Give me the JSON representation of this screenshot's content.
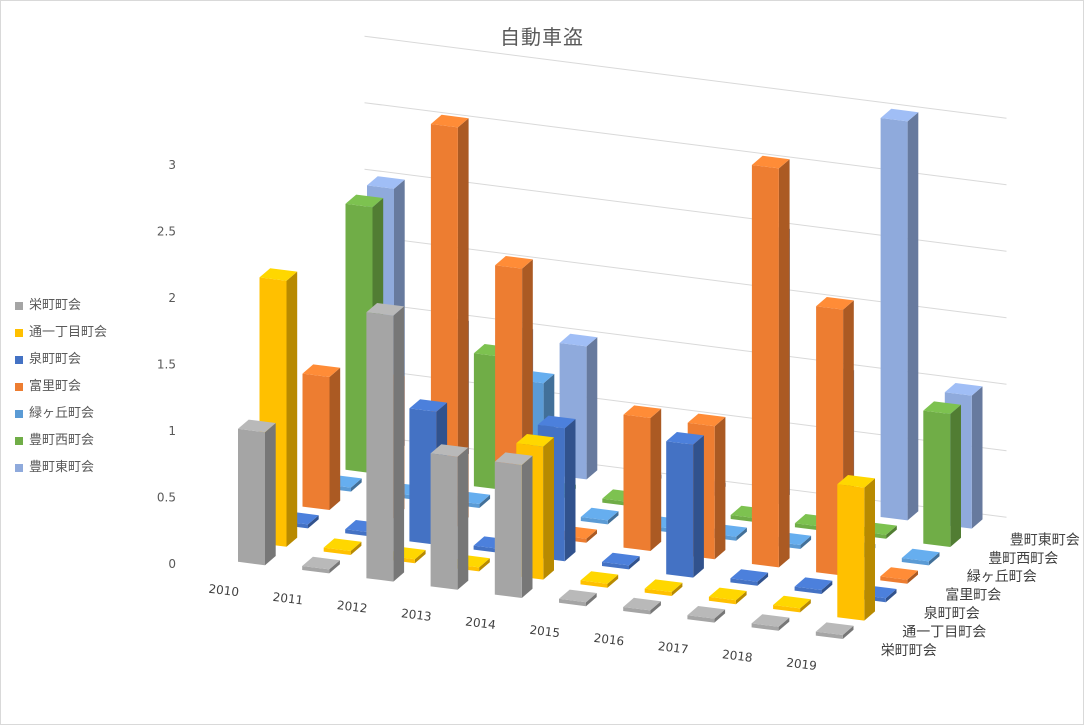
{
  "chart_data": {
    "type": "bar",
    "subtype": "3d-column",
    "title": "自動車盗",
    "categories": [
      "2010",
      "2011",
      "2012",
      "2013",
      "2014",
      "2015",
      "2016",
      "2017",
      "2018",
      "2019"
    ],
    "yticks": [
      "0",
      "0.5",
      "1",
      "1.5",
      "2",
      "2.5",
      "3"
    ],
    "ylim": [
      0,
      3
    ],
    "grid": true,
    "legend_position": "left",
    "series": [
      {
        "name": "栄町町会",
        "color": "#A5A5A5",
        "values": [
          1,
          0,
          2,
          1,
          1,
          0,
          0,
          0,
          0,
          0
        ]
      },
      {
        "name": "通一丁目町会",
        "color": "#FFC000",
        "values": [
          2,
          0,
          0,
          0,
          1,
          0,
          0,
          0,
          0,
          1
        ]
      },
      {
        "name": "泉町町会",
        "color": "#4472C4",
        "values": [
          0,
          0,
          1,
          0,
          1,
          0,
          1,
          0,
          0,
          0
        ]
      },
      {
        "name": "富里町会",
        "color": "#ED7D31",
        "values": [
          1,
          1,
          3,
          2,
          0,
          1,
          1,
          3,
          2,
          0
        ]
      },
      {
        "name": "緑ヶ丘町会",
        "color": "#5B9BD5",
        "values": [
          0,
          0,
          0,
          1,
          0,
          0,
          0,
          0,
          0,
          0
        ]
      },
      {
        "name": "豊町西町会",
        "color": "#70AD47",
        "values": [
          2,
          0,
          1,
          0,
          0,
          0,
          0,
          0,
          0,
          1
        ]
      },
      {
        "name": "豊町東町会",
        "color": "#8FAADC",
        "values": [
          2,
          1,
          1,
          1,
          0,
          0,
          2,
          1,
          3,
          1
        ]
      }
    ]
  }
}
